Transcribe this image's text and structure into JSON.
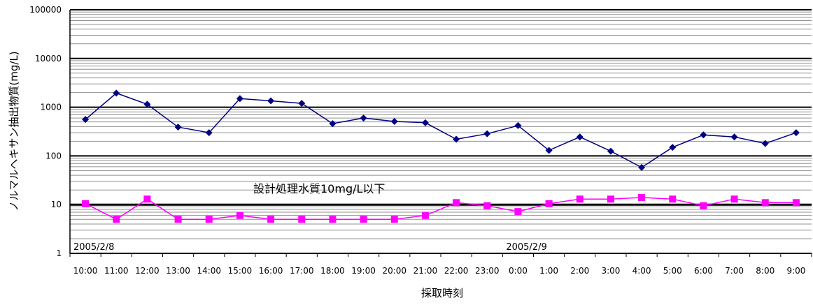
{
  "chart_data": {
    "type": "line",
    "xlabel": "採取時刻",
    "ylabel": "ノルマルヘキサン抽出物質(mg/L)",
    "yscale": "log",
    "ylim": [
      1,
      100000
    ],
    "grid": true,
    "y_ticks": [
      "1",
      "10",
      "100",
      "1000",
      "10000",
      "100000"
    ],
    "categories": [
      "10:00",
      "11:00",
      "12:00",
      "13:00",
      "14:00",
      "15:00",
      "16:00",
      "17:00",
      "18:00",
      "19:00",
      "20:00",
      "21:00",
      "22:00",
      "23:00",
      "0:00",
      "1:00",
      "2:00",
      "3:00",
      "4:00",
      "5:00",
      "6:00",
      "7:00",
      "8:00",
      "9:00"
    ],
    "series": [
      {
        "color": "#000080",
        "marker": "diamond",
        "values": [
          560,
          1950,
          1150,
          390,
          300,
          1500,
          1350,
          1200,
          460,
          600,
          510,
          480,
          220,
          285,
          420,
          130,
          245,
          125,
          58,
          150,
          270,
          245,
          180,
          300
        ]
      },
      {
        "color": "#ff00ff",
        "marker": "square",
        "values": [
          10.5,
          5,
          13,
          5,
          5,
          6,
          5,
          5,
          5,
          5,
          5,
          6,
          11,
          9.5,
          7.2,
          10.5,
          13,
          13,
          14,
          13,
          9.5,
          13,
          11,
          11
        ]
      }
    ],
    "reference_line": {
      "value": 10,
      "label": "設計処理水質10mg/L以下"
    },
    "date_labels": [
      {
        "text": "2005/2/8",
        "category": "10:00"
      },
      {
        "text": "2005/2/9",
        "category": "0:00"
      }
    ]
  }
}
